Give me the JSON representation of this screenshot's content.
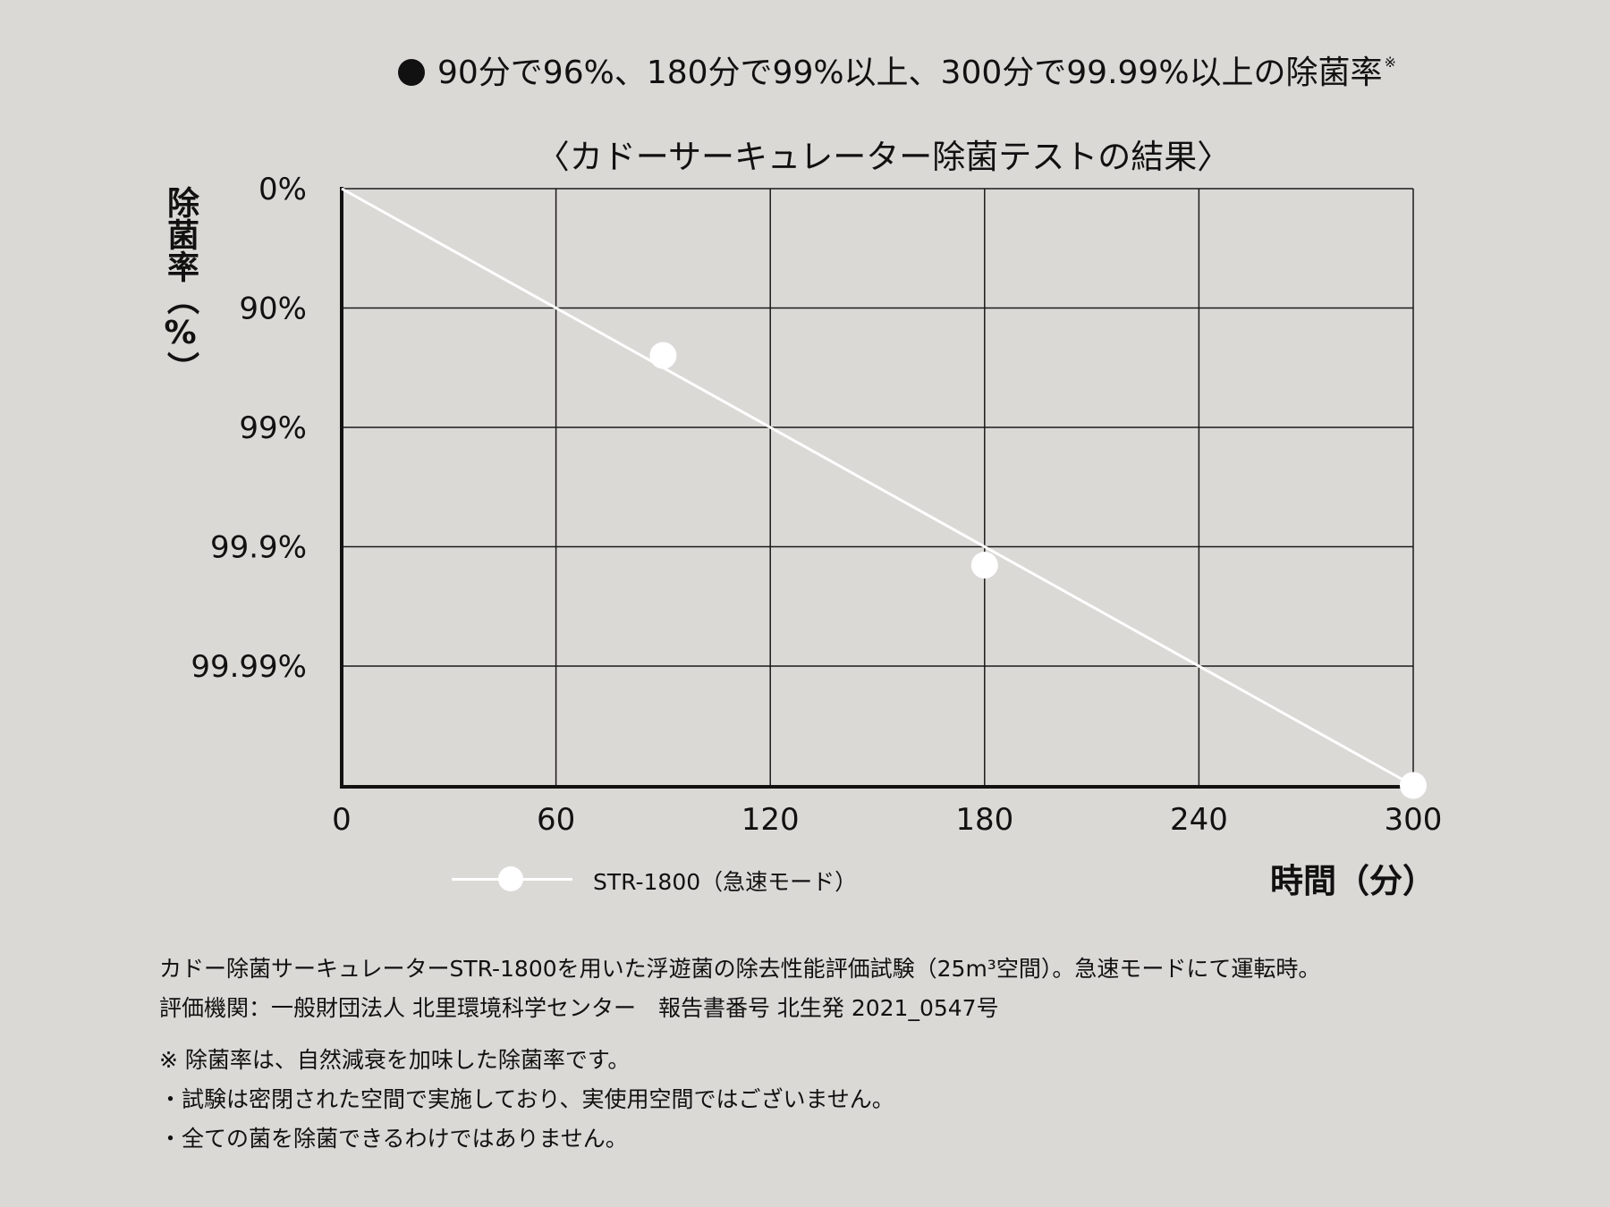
{
  "headline": {
    "text": "90分で96%、180分で99%以上、300分で99.99%以上の除菌率",
    "mark": "※"
  },
  "chart_data": {
    "type": "line",
    "title": "〈カドーサーキュレーター除菌テストの結果〉",
    "xlabel": "時間（分）",
    "ylabel": "除菌率（%）",
    "x_ticks": [
      "0",
      "60",
      "120",
      "180",
      "240",
      "300"
    ],
    "y_ticks": [
      "0%",
      "90%",
      "99%",
      "99.9%",
      "99.99%"
    ],
    "y_scale": "log (each gridline = one additional 9)",
    "xlim": [
      0,
      300
    ],
    "grid": true,
    "legend_position": "bottom",
    "series": [
      {
        "name": "STR-1800（急速モード）",
        "line_x": [
          0,
          300
        ],
        "line_y": [
          0,
          99.999
        ],
        "points": [
          {
            "x": 90,
            "y": 96
          },
          {
            "x": 180,
            "y": 99.93
          },
          {
            "x": 300,
            "y": 99.999
          }
        ]
      }
    ]
  },
  "notes": {
    "line1": "カドー除菌サーキュレーターSTR-1800を用いた浮遊菌の除去性能評価試験（25m³空間）。急速モードにて運転時。",
    "line2": "評価機関：一般財団法人 北里環境科学センター　報告書番号 北生発 2021_0547号",
    "line3": "※ 除菌率は、自然減衰を加味した除菌率です。",
    "line4": "・試験は密閉された空間で実施しており、実使用空間ではございません。",
    "line5": "・全ての菌を除菌できるわけではありません。"
  },
  "colors": {
    "background": "#dbd9d6",
    "grid": "#1a1a1a",
    "series": "#ffffff"
  }
}
